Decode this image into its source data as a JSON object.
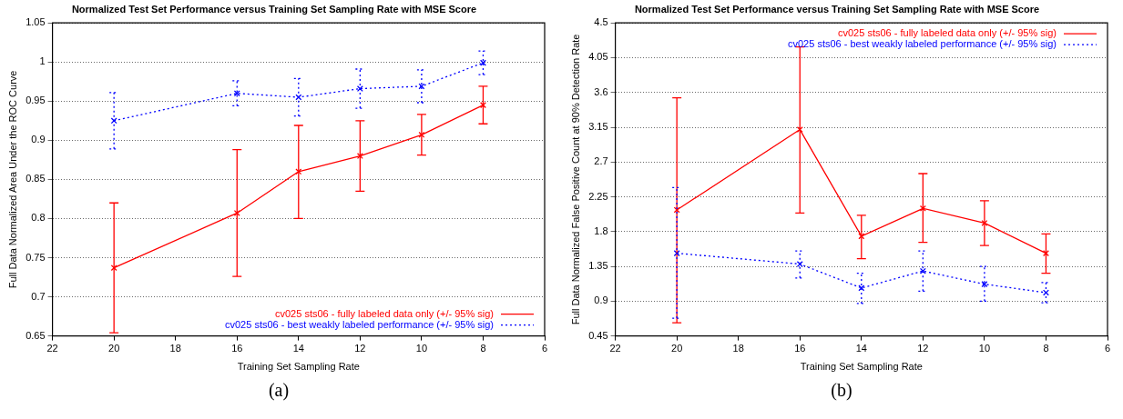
{
  "chart_data": [
    {
      "type": "line",
      "title": "Normalized Test Set Performance versus Training Set Sampling Rate with MSE Score",
      "xlabel": "Training Set Sampling Rate",
      "ylabel": "Full Data Normalized Area Under the ROC Curve",
      "x": [
        20,
        16,
        14,
        12,
        10,
        8
      ],
      "xlim": [
        22,
        6
      ],
      "xticks": [
        22,
        20,
        18,
        16,
        14,
        12,
        10,
        8,
        6
      ],
      "ylim": [
        0.65,
        1.05
      ],
      "yticks": [
        0.65,
        0.7,
        0.75,
        0.8,
        0.85,
        0.9,
        0.95,
        1,
        1.05
      ],
      "grid": "y",
      "legend": "bottom right",
      "series": [
        {
          "name": "cv025 sts06 - fully labeled data only (+/- 95% sig)",
          "color": "#ff0000",
          "marker": "cross",
          "line_style": "solid",
          "values": [
            0.737,
            0.807,
            0.86,
            0.88,
            0.907,
            0.945
          ],
          "errors": [
            [
              0.654,
              0.82
            ],
            [
              0.726,
              0.888
            ],
            [
              0.8,
              0.919
            ],
            [
              0.835,
              0.925
            ],
            [
              0.881,
              0.933
            ],
            [
              0.921,
              0.969
            ]
          ]
        },
        {
          "name": "cv025 sts06 - best weakly labeled performance (+/- 95% sig)",
          "color": "#0000ff",
          "marker": "cross",
          "line_style": "dotted",
          "values": [
            0.925,
            0.96,
            0.955,
            0.966,
            0.969,
            0.999
          ],
          "errors": [
            [
              0.889,
              0.961
            ],
            [
              0.944,
              0.976
            ],
            [
              0.931,
              0.979
            ],
            [
              0.941,
              0.991
            ],
            [
              0.948,
              0.99
            ],
            [
              0.984,
              1.014
            ]
          ]
        }
      ],
      "annotations": [
        "(a)"
      ]
    },
    {
      "type": "line",
      "title": "Normalized Test Set Performance versus Training Set Sampling Rate with MSE Score",
      "xlabel": "Training Set Sampling Rate",
      "ylabel": "Full Data Normalized False Positive Count at 90% Detection Rate",
      "x": [
        20,
        16,
        14,
        12,
        10,
        8
      ],
      "xlim": [
        22,
        6
      ],
      "xticks": [
        22,
        20,
        18,
        16,
        14,
        12,
        10,
        8,
        6
      ],
      "ylim": [
        0.45,
        4.5
      ],
      "yticks": [
        0.45,
        0.9,
        1.35,
        1.8,
        2.25,
        2.7,
        3.15,
        3.6,
        4.05,
        4.5
      ],
      "grid": "y",
      "legend": "top right",
      "series": [
        {
          "name": "cv025 sts06 - fully labeled data only (+/- 95% sig)",
          "color": "#ff0000",
          "marker": "cross",
          "line_style": "solid",
          "values": [
            2.08,
            3.12,
            1.74,
            2.1,
            1.91,
            1.52
          ],
          "errors": [
            [
              0.62,
              3.53
            ],
            [
              2.04,
              4.19
            ],
            [
              1.45,
              2.01
            ],
            [
              1.66,
              2.55
            ],
            [
              1.62,
              2.2
            ],
            [
              1.26,
              1.77
            ]
          ]
        },
        {
          "name": "cv025 sts06 - best weakly labeled performance (+/- 95% sig)",
          "color": "#0000ff",
          "marker": "cross",
          "line_style": "dotted",
          "values": [
            1.52,
            1.38,
            1.07,
            1.29,
            1.12,
            1.01
          ],
          "errors": [
            [
              0.68,
              2.37
            ],
            [
              1.2,
              1.55
            ],
            [
              0.87,
              1.26
            ],
            [
              1.03,
              1.55
            ],
            [
              0.9,
              1.35
            ],
            [
              0.88,
              1.14
            ]
          ]
        }
      ],
      "annotations": [
        "(b)"
      ]
    }
  ]
}
